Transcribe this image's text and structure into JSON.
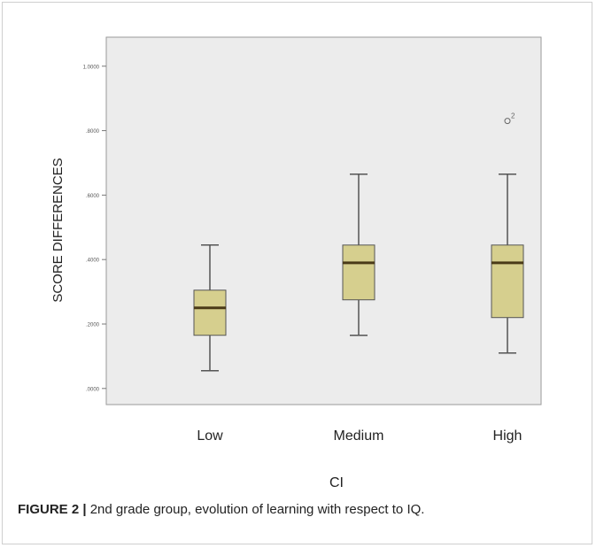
{
  "chart_data": {
    "type": "boxplot",
    "categories": [
      "Low",
      "Medium",
      "High"
    ],
    "boxes": [
      {
        "category": "Low",
        "min": 0.055,
        "q1": 0.165,
        "median": 0.25,
        "q3": 0.305,
        "max": 0.445
      },
      {
        "category": "Medium",
        "min": 0.165,
        "q1": 0.275,
        "median": 0.39,
        "q3": 0.445,
        "max": 0.665
      },
      {
        "category": "High",
        "min": 0.11,
        "q1": 0.22,
        "median": 0.39,
        "q3": 0.445,
        "max": 0.665
      }
    ],
    "outliers": [
      {
        "category": "High",
        "value": 0.83,
        "label": "2"
      }
    ],
    "y_ticks": [
      ".0000",
      ".2000",
      ".4000",
      ".6000",
      ".8000",
      "1.0000"
    ],
    "y_tick_values": [
      0,
      0.2,
      0.4,
      0.6,
      0.8,
      1.0
    ],
    "ylim": [
      -0.05,
      1.09
    ],
    "xlabel": "CI",
    "ylabel": "SCORE DIFFERENCES",
    "grid": false,
    "box_color": "#d6cf8e",
    "box_edge_color": "#555555",
    "median_color": "#4a3a18",
    "plot_background": "#ececec"
  },
  "caption": {
    "label": "FIGURE 2 |",
    "text": " 2nd grade group, evolution of learning with respect to IQ."
  }
}
